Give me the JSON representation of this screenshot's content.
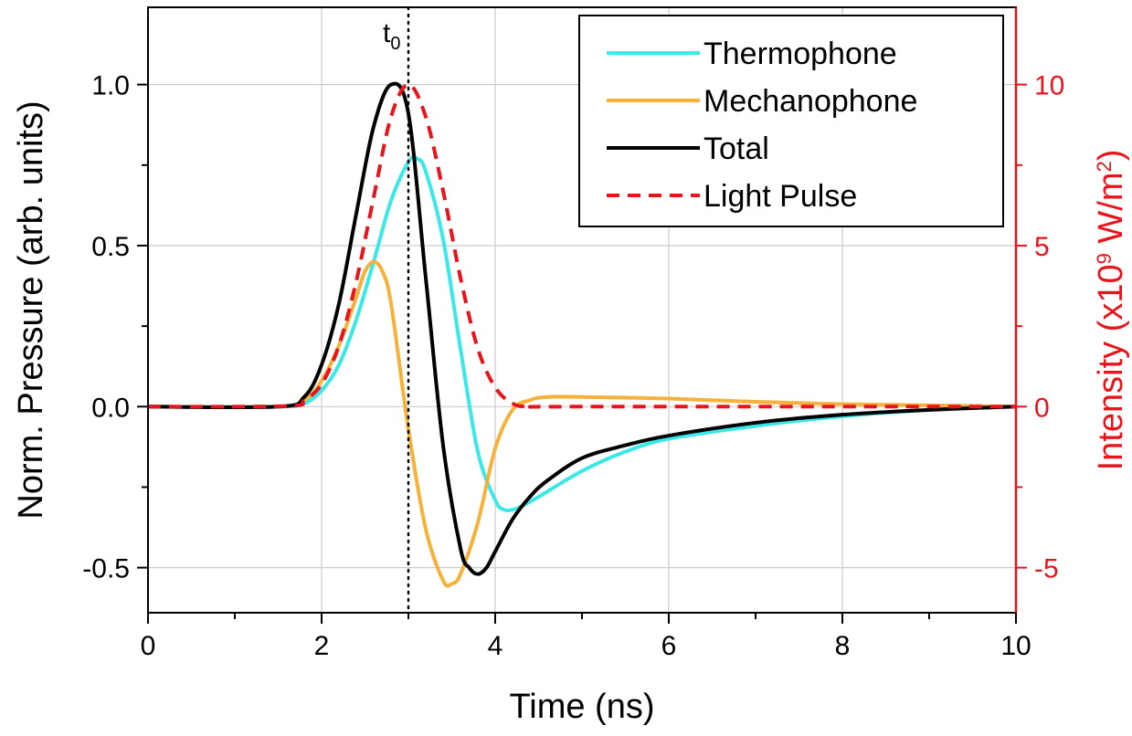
{
  "chart_data": {
    "type": "line",
    "xlabel": "Time (ns)",
    "ylabel": "Norm. Pressure (arb. units)",
    "y2label": {
      "base": "Intensity (x10",
      "exp": "9",
      "unit": " W/m",
      "unit_exp": "2",
      "close": ")"
    },
    "xlim": [
      0,
      10
    ],
    "ylim": [
      -0.64,
      1.24
    ],
    "y2lim": [
      -6.4,
      12.4
    ],
    "xticks": [
      0,
      2,
      4,
      6,
      8,
      10
    ],
    "yticks": [
      -0.5,
      0.0,
      0.5,
      1.0
    ],
    "ytick_labels": [
      "-0.5",
      "0.0",
      "0.5",
      "1.0"
    ],
    "y2ticks": [
      -5,
      0,
      5,
      10
    ],
    "y2tick_labels": [
      "-5",
      "0",
      "5",
      "10"
    ],
    "grid": true,
    "legend_position": "top-right",
    "annotation": {
      "x": 3.0,
      "label": "t",
      "subscript": "0",
      "style": "dotted"
    },
    "colors": {
      "thermophone": "#3ae8e8",
      "mechanophone": "#f5b13a",
      "total": "#000000",
      "light": "#e8141b",
      "grid": "#cccccc",
      "right_axis": "#e8141b"
    },
    "series": [
      {
        "name": "Thermophone",
        "axis": "left",
        "style": "solid",
        "x": [
          0,
          1.5,
          1.8,
          2.0,
          2.2,
          2.4,
          2.6,
          2.8,
          3.0,
          3.1,
          3.2,
          3.4,
          3.6,
          3.8,
          4.0,
          4.1,
          4.2,
          4.3,
          4.5,
          5.0,
          5.5,
          6.0,
          7.0,
          8.0,
          9.0,
          10.0
        ],
        "y": [
          0,
          0.0,
          0.01,
          0.05,
          0.13,
          0.27,
          0.45,
          0.64,
          0.76,
          0.77,
          0.73,
          0.52,
          0.18,
          -0.14,
          -0.29,
          -0.32,
          -0.32,
          -0.31,
          -0.28,
          -0.2,
          -0.14,
          -0.1,
          -0.06,
          -0.03,
          -0.01,
          0.0
        ]
      },
      {
        "name": "Mechanophone",
        "axis": "left",
        "style": "solid",
        "x": [
          0,
          1.5,
          1.8,
          2.0,
          2.2,
          2.4,
          2.5,
          2.6,
          2.7,
          2.8,
          3.0,
          3.2,
          3.4,
          3.5,
          3.6,
          3.8,
          4.0,
          4.2,
          4.4,
          4.6,
          5.0,
          6.0,
          7.0,
          8.0,
          9.0,
          10.0
        ],
        "y": [
          0,
          0.0,
          0.02,
          0.08,
          0.19,
          0.34,
          0.42,
          0.45,
          0.42,
          0.32,
          -0.07,
          -0.38,
          -0.54,
          -0.55,
          -0.52,
          -0.36,
          -0.13,
          -0.01,
          0.02,
          0.03,
          0.03,
          0.025,
          0.015,
          0.008,
          0.004,
          0.0
        ]
      },
      {
        "name": "Total",
        "axis": "left",
        "style": "solid",
        "x": [
          0,
          1.5,
          1.8,
          2.0,
          2.2,
          2.4,
          2.6,
          2.8,
          3.0,
          3.2,
          3.4,
          3.6,
          3.7,
          3.8,
          3.9,
          4.0,
          4.2,
          4.4,
          4.6,
          5.0,
          5.5,
          6.0,
          7.0,
          8.0,
          9.0,
          10.0
        ],
        "y": [
          0,
          0.0,
          0.03,
          0.13,
          0.32,
          0.6,
          0.87,
          1.0,
          0.91,
          0.4,
          -0.12,
          -0.44,
          -0.5,
          -0.52,
          -0.5,
          -0.45,
          -0.35,
          -0.28,
          -0.23,
          -0.16,
          -0.12,
          -0.09,
          -0.05,
          -0.025,
          -0.01,
          0.0
        ]
      },
      {
        "name": "Light Pulse",
        "axis": "right",
        "style": "dashed",
        "x": [
          0,
          1.6,
          1.8,
          2.0,
          2.2,
          2.4,
          2.6,
          2.8,
          3.0,
          3.2,
          3.4,
          3.6,
          3.8,
          4.0,
          4.2,
          4.4,
          5.0,
          10.0
        ],
        "y": [
          0,
          0.02,
          0.2,
          0.7,
          1.9,
          3.9,
          6.5,
          9.0,
          10.0,
          9.0,
          6.7,
          4.0,
          1.8,
          0.6,
          0.1,
          0.0,
          0.0,
          0.0
        ]
      }
    ]
  }
}
